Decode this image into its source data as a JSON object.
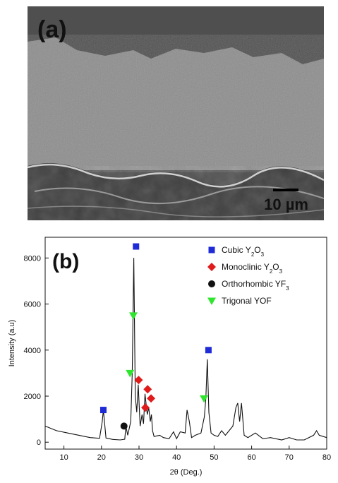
{
  "panel_a": {
    "label": "(a)",
    "scale_bar_label": "10 µm"
  },
  "chart_data": {
    "type": "line",
    "panel_label": "(b)",
    "xlabel": "2θ (Deg.)",
    "ylabel": "Intensity (a.u)",
    "xlim": [
      5,
      80
    ],
    "ylim": [
      -300,
      8900
    ],
    "xticks": [
      10,
      20,
      30,
      40,
      50,
      60,
      70,
      80
    ],
    "yticks": [
      0,
      2000,
      4000,
      6000,
      8000
    ],
    "grid": false,
    "legend_position": "top-right",
    "series": [
      {
        "x": [
          5,
          8,
          11,
          14,
          17,
          19.5,
          20.2,
          20.5,
          21.2,
          23,
          25,
          26.2,
          26.5,
          27,
          27.8,
          28.2,
          28.6,
          29.0,
          29.4,
          29.8,
          30.3,
          30.8,
          31.2,
          31.6,
          32.2,
          32.6,
          33.0,
          33.3,
          33.6,
          34,
          35.5,
          36.5,
          38,
          39.2,
          40,
          41,
          42.3,
          42.8,
          43.4,
          44,
          45,
          46.5,
          47.4,
          47.8,
          48.2,
          48.6,
          49.2,
          50,
          51,
          52,
          53,
          54,
          55,
          55.8,
          56.3,
          56.8,
          57.3,
          58,
          59,
          61,
          63,
          65,
          68,
          70,
          72,
          74,
          76.5,
          77.3,
          78,
          80
        ],
        "y": [
          700,
          500,
          400,
          300,
          200,
          170,
          900,
          1400,
          180,
          120,
          100,
          130,
          700,
          300,
          900,
          3000,
          8000,
          2000,
          1300,
          2500,
          700,
          1200,
          800,
          2100,
          1200,
          1500,
          900,
          1200,
          500,
          250,
          300,
          200,
          150,
          450,
          150,
          450,
          400,
          1400,
          900,
          200,
          300,
          400,
          1100,
          1900,
          3600,
          1300,
          400,
          300,
          250,
          500,
          300,
          500,
          700,
          1500,
          1700,
          900,
          1700,
          300,
          200,
          400,
          150,
          200,
          100,
          200,
          100,
          100,
          300,
          500,
          300,
          200
        ]
      }
    ],
    "markers": [
      {
        "phase": "cubic",
        "points": [
          [
            20.5,
            1400
          ],
          [
            29.2,
            8500
          ],
          [
            48.5,
            4000
          ]
        ]
      },
      {
        "phase": "monoclinic",
        "points": [
          [
            29.9,
            2700
          ],
          [
            31.7,
            1500
          ],
          [
            32.3,
            2300
          ],
          [
            33.2,
            1900
          ]
        ]
      },
      {
        "phase": "orthorhombic",
        "points": [
          [
            26.0,
            700
          ]
        ]
      },
      {
        "phase": "trigonal",
        "points": [
          [
            27.6,
            3000
          ],
          [
            28.5,
            5500
          ],
          [
            47.3,
            1900
          ]
        ]
      }
    ],
    "legend": [
      {
        "phase": "cubic",
        "name": "Cubic Y",
        "sub1": "2",
        "mid": "O",
        "sub2": "3",
        "color": "#1f2bd6",
        "shape": "square"
      },
      {
        "phase": "monoclinic",
        "name": "Monoclinic Y",
        "sub1": "2",
        "mid": "O",
        "sub2": "3",
        "color": "#e01b1b",
        "shape": "diamond"
      },
      {
        "phase": "orthorhombic",
        "name": "Orthorhombic YF",
        "sub1": "3",
        "mid": "",
        "sub2": "",
        "color": "#111111",
        "shape": "circle"
      },
      {
        "phase": "trigonal",
        "name": "Trigonal YOF",
        "sub1": "",
        "mid": "",
        "sub2": "",
        "color": "#2ee62e",
        "shape": "triangle-down"
      }
    ]
  }
}
